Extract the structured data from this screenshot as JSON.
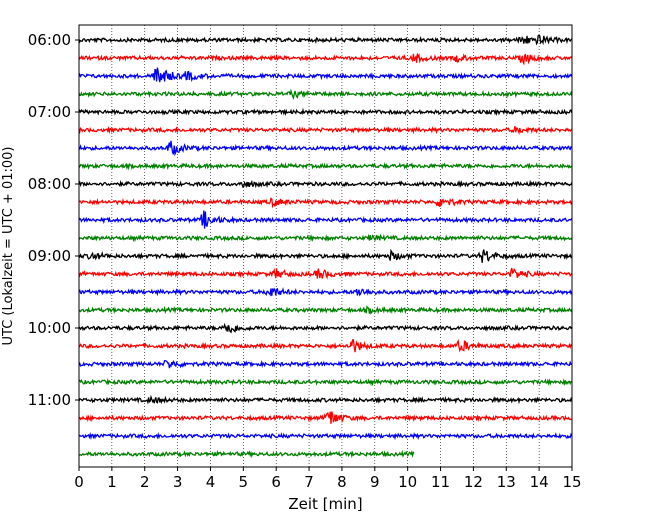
{
  "chart_data": {
    "type": "line",
    "title": "",
    "xlabel": "Zeit  [min]",
    "ylabel": "UTC (Lokalzeit = UTC + 01:00)",
    "xlim": [
      0,
      15
    ],
    "x_ticks": [
      0,
      1,
      2,
      3,
      4,
      5,
      6,
      7,
      8,
      9,
      10,
      11,
      12,
      13,
      14,
      15
    ],
    "x_tick_labels": [
      "0",
      "1",
      "2",
      "3",
      "4",
      "5",
      "6",
      "7",
      "8",
      "9",
      "10",
      "11",
      "12",
      "13",
      "14",
      "15"
    ],
    "y_tick_labels": [
      "06:00",
      "07:00",
      "08:00",
      "09:00",
      "10:00",
      "11:00"
    ],
    "row_interval_min": 15,
    "grid": "vertical-dotted",
    "color_cycle": [
      "#000000",
      "#ff0000",
      "#0000ff",
      "#008000"
    ],
    "traces": [
      {
        "start": "06:00",
        "color": "#000000",
        "end_min": 15,
        "events": [
          {
            "t": 13.5,
            "amp": 0.35
          },
          {
            "t": 14.0,
            "amp": 0.25
          }
        ]
      },
      {
        "start": "06:15",
        "color": "#ff0000",
        "end_min": 15,
        "events": [
          {
            "t": 10.2,
            "amp": 0.3
          },
          {
            "t": 11.5,
            "amp": 0.2
          },
          {
            "t": 13.5,
            "amp": 0.35
          }
        ]
      },
      {
        "start": "06:30",
        "color": "#0000ff",
        "end_min": 15,
        "events": [
          {
            "t": 2.4,
            "amp": 0.9
          },
          {
            "t": 3.3,
            "amp": 0.3
          }
        ]
      },
      {
        "start": "06:45",
        "color": "#008000",
        "end_min": 15,
        "events": [
          {
            "t": 6.5,
            "amp": 0.2
          }
        ]
      },
      {
        "start": "07:00",
        "color": "#000000",
        "end_min": 15,
        "events": []
      },
      {
        "start": "07:15",
        "color": "#ff0000",
        "end_min": 15,
        "events": [
          {
            "t": 13.3,
            "amp": 0.2
          }
        ]
      },
      {
        "start": "07:30",
        "color": "#0000ff",
        "end_min": 15,
        "events": [
          {
            "t": 2.8,
            "amp": 0.5
          }
        ]
      },
      {
        "start": "07:45",
        "color": "#008000",
        "end_min": 15,
        "events": []
      },
      {
        "start": "08:00",
        "color": "#000000",
        "end_min": 15,
        "events": [
          {
            "t": 5.0,
            "amp": 0.2
          }
        ]
      },
      {
        "start": "08:15",
        "color": "#ff0000",
        "end_min": 15,
        "events": [
          {
            "t": 5.9,
            "amp": 0.25
          },
          {
            "t": 11.0,
            "amp": 0.4
          }
        ]
      },
      {
        "start": "08:30",
        "color": "#0000ff",
        "end_min": 15,
        "events": [
          {
            "t": 3.8,
            "amp": 0.6
          }
        ]
      },
      {
        "start": "08:45",
        "color": "#008000",
        "end_min": 15,
        "events": [
          {
            "t": 8.9,
            "amp": 0.15
          }
        ]
      },
      {
        "start": "09:00",
        "color": "#000000",
        "end_min": 15,
        "events": [
          {
            "t": 0.4,
            "amp": 0.25
          },
          {
            "t": 9.5,
            "amp": 0.3
          },
          {
            "t": 12.3,
            "amp": 0.5
          }
        ]
      },
      {
        "start": "09:15",
        "color": "#ff0000",
        "end_min": 15,
        "events": [
          {
            "t": 6.0,
            "amp": 0.3
          },
          {
            "t": 7.3,
            "amp": 0.35
          },
          {
            "t": 13.2,
            "amp": 0.4
          }
        ]
      },
      {
        "start": "09:30",
        "color": "#0000ff",
        "end_min": 15,
        "events": [
          {
            "t": 5.8,
            "amp": 0.4
          },
          {
            "t": 8.5,
            "amp": 0.3
          }
        ]
      },
      {
        "start": "09:45",
        "color": "#008000",
        "end_min": 15,
        "events": [
          {
            "t": 8.8,
            "amp": 0.15
          }
        ]
      },
      {
        "start": "10:00",
        "color": "#000000",
        "end_min": 15,
        "events": [
          {
            "t": 4.5,
            "amp": 0.45
          }
        ]
      },
      {
        "start": "10:15",
        "color": "#ff0000",
        "end_min": 15,
        "events": [
          {
            "t": 8.3,
            "amp": 0.5
          },
          {
            "t": 11.6,
            "amp": 0.4
          }
        ]
      },
      {
        "start": "10:30",
        "color": "#0000ff",
        "end_min": 15,
        "events": [
          {
            "t": 2.7,
            "amp": 0.3
          }
        ]
      },
      {
        "start": "10:45",
        "color": "#008000",
        "end_min": 15,
        "events": []
      },
      {
        "start": "11:00",
        "color": "#000000",
        "end_min": 15,
        "events": [
          {
            "t": 2.2,
            "amp": 0.2
          }
        ]
      },
      {
        "start": "11:15",
        "color": "#ff0000",
        "end_min": 15,
        "events": [
          {
            "t": 7.6,
            "amp": 0.65
          }
        ]
      },
      {
        "start": "11:30",
        "color": "#0000ff",
        "end_min": 15,
        "events": []
      },
      {
        "start": "11:45",
        "color": "#008000",
        "end_min": 10.2,
        "events": []
      }
    ]
  }
}
